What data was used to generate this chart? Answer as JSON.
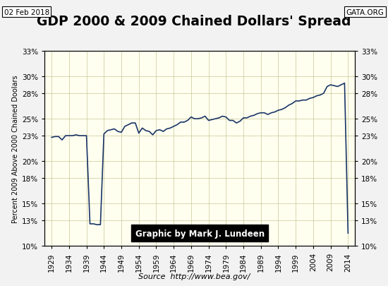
{
  "title": "GDP 2000 & 2009 Chained Dollars' Spread",
  "date_label": "02 Feb 2018",
  "gata_label": "GATA.ORG",
  "ylabel_left": "Percent 2009 Above 2000 Chained Doolars",
  "source_label": "Source  http://www.bea.gov/",
  "watermark": "Graphic by Mark J. Lundeen",
  "outer_bg": "#f2f2f2",
  "header_bg": "#ffffff",
  "plot_bg_color": "#FFFFF0",
  "line_color": "#1a3566",
  "ylim": [
    10,
    33
  ],
  "ytick_values": [
    10,
    13,
    15,
    18,
    20,
    23,
    25,
    28,
    30,
    33
  ],
  "ytick_labels": [
    "10%",
    "13%",
    "15%",
    "18%",
    "20%",
    "23%",
    "25%",
    "28%",
    "30%",
    "33%"
  ],
  "xtick_values": [
    1929,
    1934,
    1939,
    1944,
    1949,
    1954,
    1959,
    1964,
    1969,
    1974,
    1979,
    1984,
    1989,
    1994,
    1999,
    2004,
    2009,
    2014
  ],
  "xlim": [
    1927,
    2016
  ],
  "years": [
    1929,
    1930,
    1931,
    1932,
    1933,
    1934,
    1935,
    1936,
    1937,
    1938,
    1939,
    1940,
    1941,
    1942,
    1943,
    1944,
    1945,
    1946,
    1947,
    1948,
    1949,
    1950,
    1951,
    1952,
    1953,
    1954,
    1955,
    1956,
    1957,
    1958,
    1959,
    1960,
    1961,
    1962,
    1963,
    1964,
    1965,
    1966,
    1967,
    1968,
    1969,
    1970,
    1971,
    1972,
    1973,
    1974,
    1975,
    1976,
    1977,
    1978,
    1979,
    1980,
    1981,
    1982,
    1983,
    1984,
    1985,
    1986,
    1987,
    1988,
    1989,
    1990,
    1991,
    1992,
    1993,
    1994,
    1995,
    1996,
    1997,
    1998,
    1999,
    2000,
    2001,
    2002,
    2003,
    2004,
    2005,
    2006,
    2007,
    2008,
    2009,
    2010,
    2011,
    2012,
    2013,
    2014
  ],
  "values": [
    22.8,
    22.9,
    22.9,
    22.5,
    23.0,
    23.0,
    23.0,
    23.1,
    23.0,
    23.0,
    23.0,
    12.6,
    12.6,
    12.5,
    12.5,
    23.2,
    23.6,
    23.7,
    23.8,
    23.5,
    23.4,
    24.1,
    24.3,
    24.5,
    24.5,
    23.3,
    23.9,
    23.6,
    23.5,
    23.1,
    23.6,
    23.7,
    23.5,
    23.8,
    23.9,
    24.1,
    24.3,
    24.6,
    24.6,
    24.8,
    25.2,
    25.0,
    25.0,
    25.1,
    25.3,
    24.8,
    24.9,
    25.0,
    25.1,
    25.3,
    25.2,
    24.8,
    24.8,
    24.5,
    24.7,
    25.1,
    25.1,
    25.3,
    25.4,
    25.6,
    25.7,
    25.7,
    25.5,
    25.7,
    25.8,
    26.0,
    26.1,
    26.3,
    26.6,
    26.8,
    27.1,
    27.1,
    27.2,
    27.2,
    27.4,
    27.5,
    27.7,
    27.8,
    28.0,
    28.8,
    29.0,
    28.9,
    28.8,
    29.0,
    29.2,
    11.5
  ]
}
